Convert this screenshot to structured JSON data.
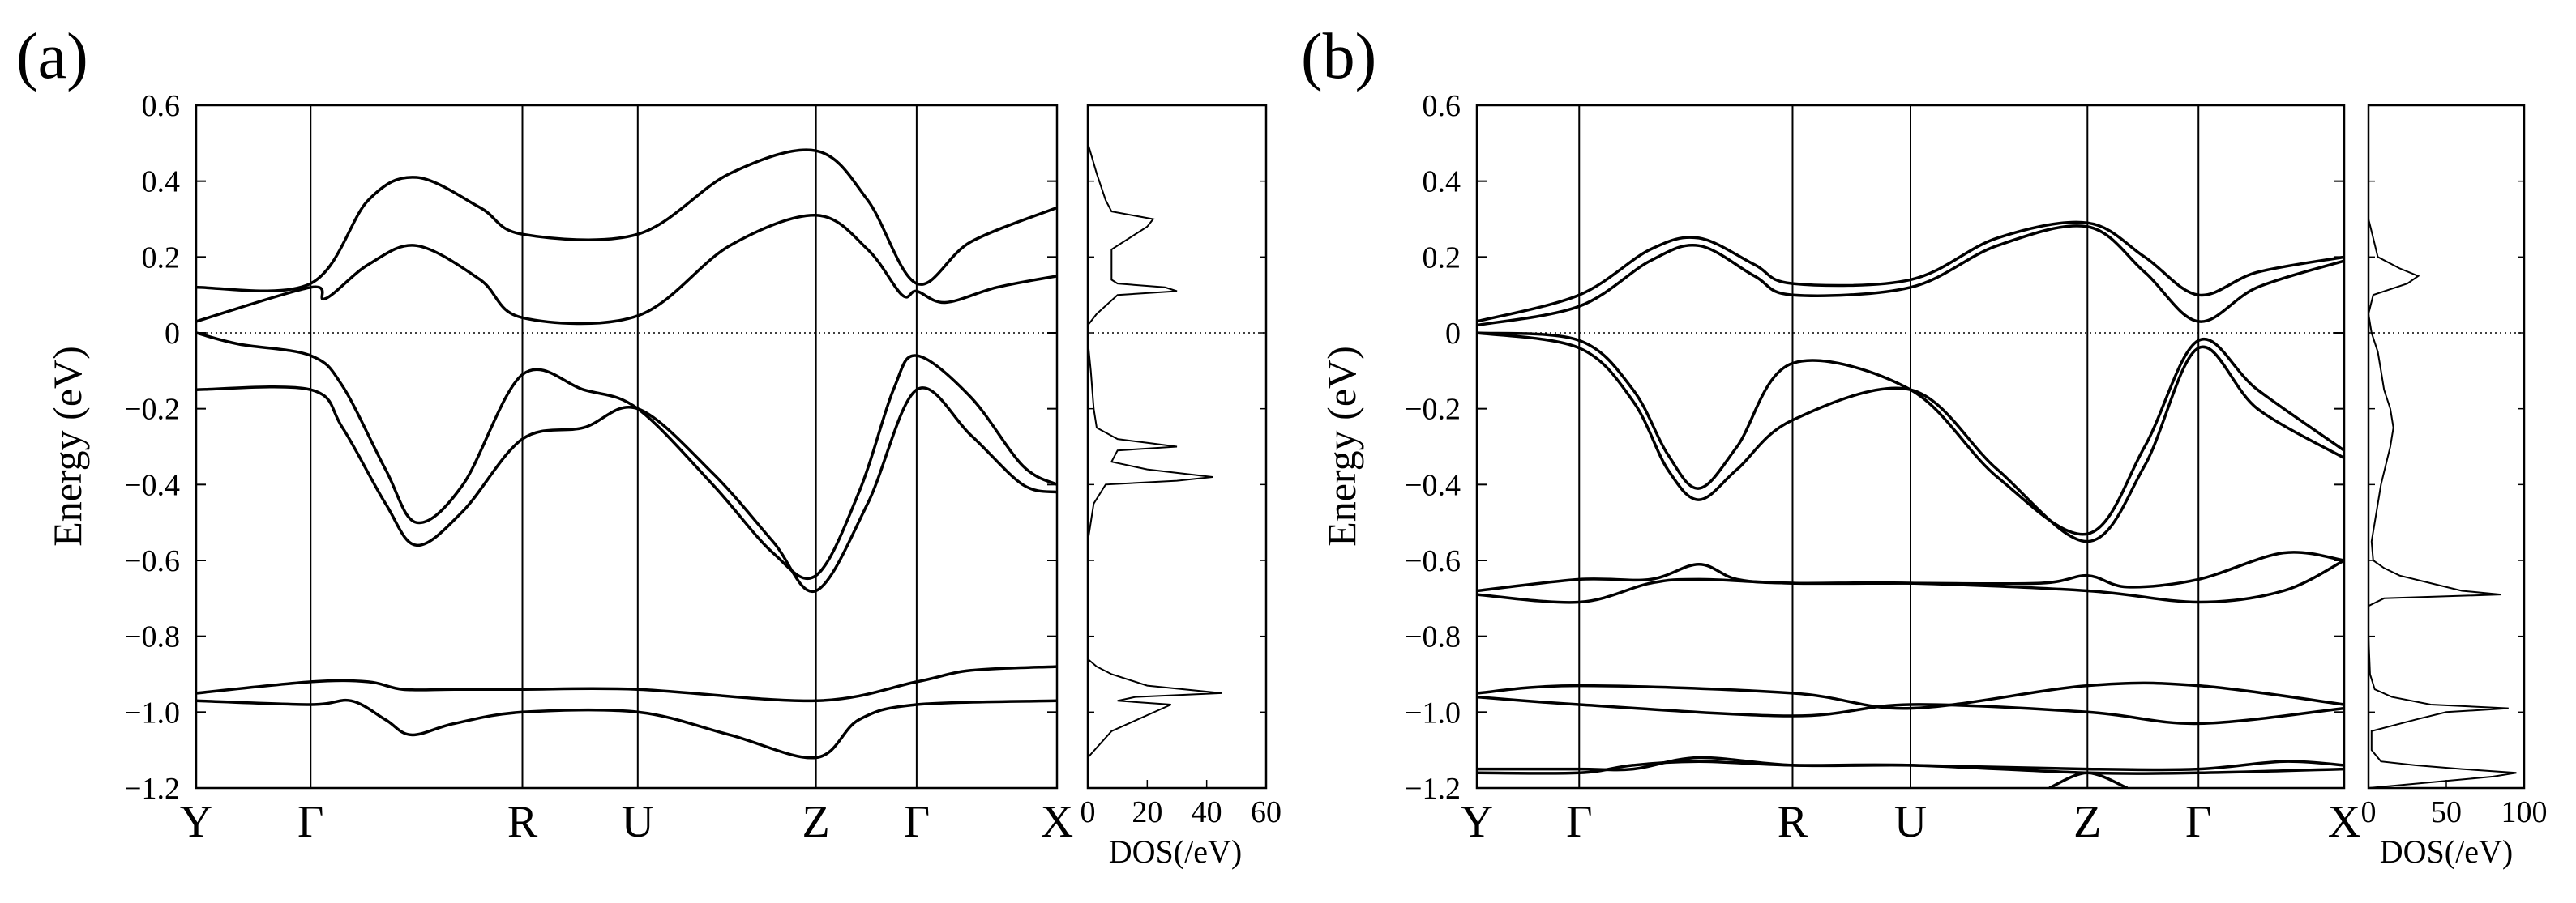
{
  "chart_data": [
    {
      "type": "line",
      "panel_label": "(a)",
      "ylabel": "Energy (eV)",
      "ylim": [
        -1.2,
        0.6
      ],
      "yticks": [
        0.6,
        0.4,
        0.2,
        0,
        -0.2,
        -0.4,
        -0.6,
        -0.8,
        -1.0,
        -1.2
      ],
      "ytick_labels": [
        "0.6",
        "0.4",
        "0.2",
        "0",
        "−0.2",
        "−0.4",
        "−0.6",
        "−0.8",
        "−1.0",
        "−1.2"
      ],
      "fermi_level": 0,
      "kpath": {
        "labels": [
          "Y",
          "Γ",
          "R",
          "U",
          "Z",
          "Γ",
          "X"
        ],
        "positions": [
          0,
          0.133,
          0.379,
          0.513,
          0.72,
          0.837,
          1.0
        ]
      },
      "bands": [
        {
          "name": "band-1",
          "x": [
            0,
            0.133,
            0.2,
            0.256,
            0.33,
            0.379,
            0.513,
            0.62,
            0.72,
            0.78,
            0.837,
            0.9,
            1.0
          ],
          "y": [
            0.12,
            0.13,
            0.35,
            0.41,
            0.33,
            0.26,
            0.26,
            0.42,
            0.48,
            0.35,
            0.13,
            0.24,
            0.33
          ]
        },
        {
          "name": "band-2",
          "x": [
            0,
            0.133,
            0.15,
            0.2,
            0.256,
            0.33,
            0.379,
            0.513,
            0.62,
            0.72,
            0.78,
            0.82,
            0.837,
            0.87,
            0.93,
            1.0
          ],
          "y": [
            0.03,
            0.12,
            0.09,
            0.18,
            0.23,
            0.14,
            0.04,
            0.045,
            0.23,
            0.31,
            0.22,
            0.1,
            0.11,
            0.08,
            0.12,
            0.15
          ]
        },
        {
          "name": "band-3",
          "x": [
            0,
            0.05,
            0.133,
            0.17,
            0.22,
            0.256,
            0.31,
            0.379,
            0.45,
            0.513,
            0.6,
            0.67,
            0.72,
            0.77,
            0.81,
            0.837,
            0.9,
            0.96,
            1.0
          ],
          "y": [
            0.0,
            -0.03,
            -0.06,
            -0.14,
            -0.36,
            -0.5,
            -0.4,
            -0.11,
            -0.15,
            -0.2,
            -0.4,
            -0.58,
            -0.64,
            -0.42,
            -0.15,
            -0.06,
            -0.17,
            -0.35,
            -0.4
          ]
        },
        {
          "name": "band-4",
          "x": [
            0,
            0.133,
            0.17,
            0.22,
            0.256,
            0.31,
            0.379,
            0.45,
            0.513,
            0.6,
            0.67,
            0.72,
            0.78,
            0.837,
            0.9,
            0.96,
            1.0
          ],
          "y": [
            -0.15,
            -0.15,
            -0.25,
            -0.45,
            -0.56,
            -0.47,
            -0.28,
            -0.25,
            -0.2,
            -0.37,
            -0.55,
            -0.68,
            -0.45,
            -0.15,
            -0.27,
            -0.4,
            -0.42
          ]
        },
        {
          "name": "band-5",
          "x": [
            0,
            0.133,
            0.2,
            0.24,
            0.3,
            0.379,
            0.513,
            0.72,
            0.837,
            0.9,
            1.0
          ],
          "y": [
            -0.95,
            -0.92,
            -0.92,
            -0.94,
            -0.94,
            -0.94,
            -0.94,
            -0.97,
            -0.92,
            -0.89,
            -0.88
          ]
        },
        {
          "name": "band-6",
          "x": [
            0,
            0.133,
            0.18,
            0.22,
            0.25,
            0.3,
            0.379,
            0.513,
            0.62,
            0.72,
            0.77,
            0.837,
            1.0
          ],
          "y": [
            -0.97,
            -0.98,
            -0.97,
            -1.02,
            -1.06,
            -1.03,
            -1.0,
            -1.0,
            -1.06,
            -1.12,
            -1.02,
            -0.98,
            -0.97
          ]
        }
      ],
      "dos": {
        "title": "DOS(/eV)",
        "xlim": [
          0,
          60
        ],
        "xticks": [
          0,
          20,
          40,
          60
        ],
        "xtick_labels": [
          "0",
          "20",
          "40",
          "60"
        ],
        "energy": [
          -1.2,
          -1.12,
          -1.05,
          -0.98,
          -0.97,
          -0.96,
          -0.95,
          -0.93,
          -0.9,
          -0.88,
          -0.86,
          -0.8,
          -0.7,
          -0.55,
          -0.45,
          -0.4,
          -0.39,
          -0.38,
          -0.36,
          -0.34,
          -0.31,
          -0.3,
          -0.29,
          -0.28,
          -0.25,
          -0.2,
          -0.1,
          -0.02,
          0,
          0.02,
          0.05,
          0.1,
          0.11,
          0.12,
          0.13,
          0.14,
          0.16,
          0.2,
          0.22,
          0.28,
          0.3,
          0.32,
          0.35,
          0.42,
          0.5,
          0.6
        ],
        "values": [
          0,
          0,
          8,
          28,
          10,
          16,
          45,
          20,
          8,
          3,
          0,
          0,
          0,
          0,
          2,
          6,
          30,
          42,
          20,
          8,
          10,
          30,
          20,
          10,
          3,
          2,
          1,
          0,
          0,
          0,
          3,
          10,
          30,
          26,
          10,
          8,
          8,
          8,
          8,
          20,
          22,
          8,
          6,
          3,
          0,
          0
        ]
      }
    },
    {
      "type": "line",
      "panel_label": "(b)",
      "ylabel": "Energy (eV)",
      "ylim": [
        -1.2,
        0.6
      ],
      "yticks": [
        0.6,
        0.4,
        0.2,
        0,
        -0.2,
        -0.4,
        -0.6,
        -0.8,
        -1.0,
        -1.2
      ],
      "ytick_labels": [
        "0.6",
        "0.4",
        "0.2",
        "0",
        "−0.2",
        "−0.4",
        "−0.6",
        "−0.8",
        "−1.0",
        "−1.2"
      ],
      "fermi_level": 0,
      "kpath": {
        "labels": [
          "Y",
          "Γ",
          "R",
          "U",
          "Z",
          "Γ",
          "X"
        ],
        "positions": [
          0,
          0.118,
          0.364,
          0.5,
          0.704,
          0.832,
          1.0
        ]
      },
      "bands": [
        {
          "name": "band-1",
          "x": [
            0,
            0.118,
            0.2,
            0.256,
            0.32,
            0.364,
            0.5,
            0.6,
            0.704,
            0.77,
            0.832,
            0.9,
            1.0
          ],
          "y": [
            0.03,
            0.1,
            0.22,
            0.25,
            0.18,
            0.13,
            0.14,
            0.25,
            0.29,
            0.2,
            0.1,
            0.16,
            0.2
          ]
        },
        {
          "name": "band-2",
          "x": [
            0,
            0.118,
            0.2,
            0.256,
            0.32,
            0.364,
            0.5,
            0.6,
            0.704,
            0.77,
            0.832,
            0.9,
            1.0
          ],
          "y": [
            0.02,
            0.07,
            0.19,
            0.23,
            0.15,
            0.1,
            0.12,
            0.23,
            0.28,
            0.16,
            0.03,
            0.12,
            0.19
          ]
        },
        {
          "name": "band-3",
          "x": [
            0,
            0.118,
            0.18,
            0.22,
            0.256,
            0.3,
            0.364,
            0.5,
            0.6,
            0.704,
            0.77,
            0.832,
            0.9,
            1.0
          ],
          "y": [
            0.0,
            -0.02,
            -0.15,
            -0.32,
            -0.41,
            -0.3,
            -0.08,
            -0.15,
            -0.38,
            -0.53,
            -0.3,
            -0.02,
            -0.15,
            -0.31
          ]
        },
        {
          "name": "band-4",
          "x": [
            0,
            0.118,
            0.18,
            0.22,
            0.256,
            0.3,
            0.364,
            0.5,
            0.6,
            0.704,
            0.77,
            0.832,
            0.9,
            1.0
          ],
          "y": [
            0.0,
            -0.04,
            -0.18,
            -0.36,
            -0.44,
            -0.36,
            -0.23,
            -0.15,
            -0.36,
            -0.55,
            -0.35,
            -0.04,
            -0.2,
            -0.33
          ]
        },
        {
          "name": "band-5",
          "x": [
            0,
            0.118,
            0.2,
            0.256,
            0.3,
            0.364,
            0.5,
            0.65,
            0.704,
            0.75,
            0.832,
            0.93,
            1.0
          ],
          "y": [
            -0.68,
            -0.65,
            -0.65,
            -0.61,
            -0.65,
            -0.66,
            -0.66,
            -0.66,
            -0.64,
            -0.67,
            -0.65,
            -0.58,
            -0.6
          ]
        },
        {
          "name": "band-6",
          "x": [
            0,
            0.118,
            0.2,
            0.256,
            0.364,
            0.5,
            0.704,
            0.832,
            0.93,
            1.0
          ],
          "y": [
            -0.69,
            -0.71,
            -0.66,
            -0.65,
            -0.66,
            -0.66,
            -0.68,
            -0.71,
            -0.68,
            -0.6
          ]
        },
        {
          "name": "band-7",
          "x": [
            0,
            0.118,
            0.364,
            0.5,
            0.704,
            0.832,
            1.0
          ],
          "y": [
            -0.95,
            -0.93,
            -0.95,
            -0.99,
            -0.93,
            -0.93,
            -0.98
          ]
        },
        {
          "name": "band-8",
          "x": [
            0,
            0.118,
            0.364,
            0.5,
            0.704,
            0.832,
            1.0
          ],
          "y": [
            -0.96,
            -0.98,
            -1.01,
            -0.98,
            -1.0,
            -1.03,
            -0.99
          ]
        },
        {
          "name": "band-9",
          "x": [
            0,
            0.118,
            0.18,
            0.256,
            0.364,
            0.5,
            0.704,
            0.832,
            0.93,
            1.0
          ],
          "y": [
            -1.15,
            -1.15,
            -1.15,
            -1.12,
            -1.14,
            -1.14,
            -1.15,
            -1.15,
            -1.13,
            -1.14
          ]
        },
        {
          "name": "band-10",
          "x": [
            0,
            0.118,
            0.18,
            0.256,
            0.364,
            0.5,
            0.704,
            0.832,
            1.0
          ],
          "y": [
            -1.16,
            -1.16,
            -1.14,
            -1.13,
            -1.14,
            -1.14,
            -1.16,
            -1.16,
            -1.15
          ]
        },
        {
          "name": "band-11",
          "x": [
            0.66,
            0.704,
            0.75
          ],
          "y": [
            -1.2,
            -1.16,
            -1.2
          ]
        }
      ],
      "dos": {
        "title": "DOS(/eV)",
        "xlim": [
          0,
          100
        ],
        "xticks": [
          0,
          50,
          100
        ],
        "xtick_labels": [
          "0",
          "50",
          "100"
        ],
        "energy": [
          -1.2,
          -1.17,
          -1.16,
          -1.15,
          -1.14,
          -1.13,
          -1.1,
          -1.05,
          -1.02,
          -1.0,
          -0.99,
          -0.98,
          -0.96,
          -0.94,
          -0.9,
          -0.8,
          -0.72,
          -0.7,
          -0.69,
          -0.68,
          -0.66,
          -0.64,
          -0.62,
          -0.6,
          -0.55,
          -0.5,
          -0.4,
          -0.3,
          -0.25,
          -0.2,
          -0.15,
          -0.1,
          -0.05,
          0,
          0.05,
          0.1,
          0.13,
          0.15,
          0.17,
          0.2,
          0.25,
          0.3,
          0.6
        ],
        "values": [
          0,
          80,
          95,
          60,
          30,
          8,
          2,
          2,
          30,
          50,
          90,
          40,
          15,
          4,
          1,
          0,
          0,
          10,
          85,
          60,
          40,
          20,
          10,
          3,
          2,
          4,
          8,
          14,
          16,
          14,
          10,
          8,
          6,
          2,
          0,
          3,
          25,
          32,
          20,
          6,
          3,
          0,
          0
        ]
      }
    }
  ]
}
